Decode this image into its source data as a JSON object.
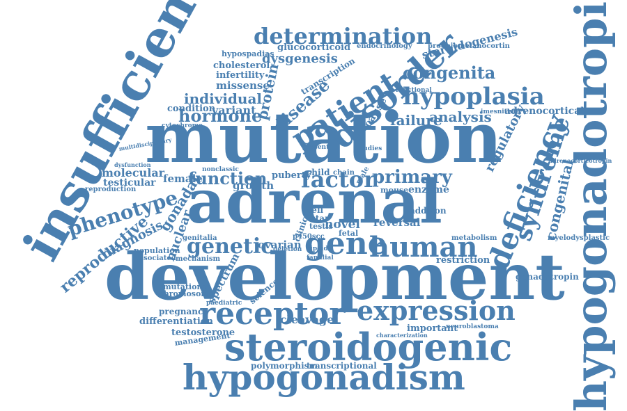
{
  "cloud": {
    "color": "#4a7fb0",
    "words": [
      "development",
      "mutation",
      "adrenal",
      "insufficiency",
      "hypogonadotropic",
      "steroidogenic",
      "hypogonadism",
      "receptor",
      "expression",
      "gene",
      "human",
      "disorder",
      "patient",
      "deficiency",
      "syndrome",
      "hypoplasia",
      "determination",
      "genetic",
      "factor",
      "phenotype",
      "reproductive",
      "congenita",
      "congenital",
      "function",
      "primary",
      "hormone",
      "disease",
      "protein",
      "individual",
      "dysgenesis",
      "diagnosis",
      "gonadal",
      "nuclear",
      "regulatory",
      "failure",
      "analysis",
      "steroidogenesis",
      "adrenocortical",
      "molecular",
      "testicular",
      "female",
      "missense",
      "infertility",
      "cholesterol",
      "variant",
      "condition",
      "glucocorticoid",
      "hypospadias",
      "spectrum",
      "cleavage",
      "testosterone",
      "differentiation",
      "important",
      "polymorphism",
      "transcriptional",
      "management",
      "pregnancy",
      "chromosome",
      "mutational",
      "ovarian",
      "novel",
      "reversal",
      "growth",
      "puberty",
      "restriction",
      "gonadotropin",
      "endocrinology",
      "transcription",
      "proopiomelanocortin",
      "enzyme",
      "cause",
      "child",
      "chain",
      "mouse",
      "addison",
      "fetal",
      "testis",
      "star",
      "cell",
      "clinical",
      "population",
      "associated",
      "mechanism",
      "paediatric",
      "science",
      "genitalia",
      "myelodysplastic",
      "adrenocorticotropin",
      "neuroblastoma",
      "characterization",
      "metabolism",
      "dysfunction",
      "multidisciplinary",
      "nonclassic",
      "reproduction",
      "cytochrome",
      "lipoid",
      "deletion",
      "familial",
      "p450scc",
      "male",
      "present",
      "functional",
      "studies",
      "imesnitivity"
    ]
  }
}
